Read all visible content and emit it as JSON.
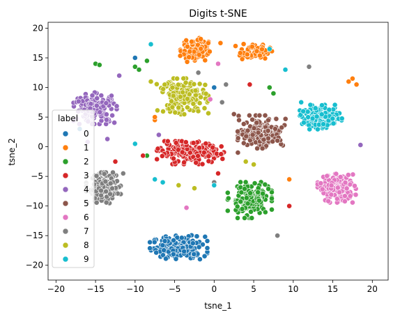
{
  "chart_data": {
    "type": "scatter",
    "title": "Digits t-SNE",
    "xlabel": "tsne_1",
    "ylabel": "tsne_2",
    "xlim": [
      -21,
      22
    ],
    "ylim": [
      -22.5,
      21
    ],
    "xticks": [
      -20,
      -15,
      -10,
      -5,
      0,
      5,
      10,
      15,
      20
    ],
    "yticks": [
      -20,
      -15,
      -10,
      -5,
      0,
      5,
      10,
      15,
      20
    ],
    "grid": false,
    "legend": {
      "title": "label",
      "placement": "lower-left",
      "entries": [
        "0",
        "1",
        "2",
        "3",
        "4",
        "5",
        "6",
        "7",
        "8",
        "9"
      ]
    },
    "colors": [
      "#1f77b4",
      "#ff7f0e",
      "#2ca02c",
      "#d62728",
      "#9467bd",
      "#8c564b",
      "#e377c2",
      "#7f7f7f",
      "#bcbd22",
      "#17becf"
    ],
    "clusters": [
      {
        "label": "0",
        "center": [
          -4.5,
          -17
        ],
        "spread": [
          3.0,
          1.7
        ],
        "count": 180
      },
      {
        "label": "1",
        "center": [
          -2.5,
          16.5
        ],
        "spread": [
          1.6,
          1.8
        ],
        "count": 95
      },
      {
        "label": "1",
        "center": [
          5,
          16
        ],
        "spread": [
          1.9,
          1.1
        ],
        "count": 60
      },
      {
        "label": "2",
        "center": [
          4.5,
          -9
        ],
        "spread": [
          2.3,
          2.5
        ],
        "count": 165
      },
      {
        "label": "3",
        "center": [
          -3,
          -1
        ],
        "spread": [
          3.5,
          1.6
        ],
        "count": 185
      },
      {
        "label": "4",
        "center": [
          -15,
          6.5
        ],
        "spread": [
          2.3,
          2.2
        ],
        "count": 170
      },
      {
        "label": "5",
        "center": [
          6,
          2.5
        ],
        "spread": [
          2.5,
          2.3
        ],
        "count": 170
      },
      {
        "label": "6",
        "center": [
          15.5,
          -7
        ],
        "spread": [
          2.0,
          2.0
        ],
        "count": 175
      },
      {
        "label": "7",
        "center": [
          -14,
          -7
        ],
        "spread": [
          1.8,
          2.2
        ],
        "count": 160
      },
      {
        "label": "8",
        "center": [
          -4,
          8.5
        ],
        "spread": [
          2.7,
          2.5
        ],
        "count": 170
      },
      {
        "label": "9",
        "center": [
          13.5,
          5
        ],
        "spread": [
          2.2,
          1.7
        ],
        "count": 175
      }
    ],
    "outliers": [
      {
        "label": "0",
        "points": [
          [
            -10,
            15
          ],
          [
            -17,
            3
          ],
          [
            -10,
            0.5
          ],
          [
            0,
            10
          ]
        ]
      },
      {
        "label": "1",
        "points": [
          [
            -7.5,
            4.5
          ],
          [
            -7.5,
            5
          ],
          [
            0.8,
            17.5
          ],
          [
            17.5,
            11.5
          ],
          [
            18,
            10.5
          ],
          [
            17,
            11
          ],
          [
            9.5,
            -5.5
          ]
        ]
      },
      {
        "label": "2",
        "points": [
          [
            -10,
            13.5
          ],
          [
            -8.5,
            14.5
          ],
          [
            -15,
            14
          ],
          [
            -14.5,
            13.8
          ],
          [
            -8.5,
            -1.5
          ],
          [
            -9.5,
            13
          ],
          [
            7,
            10
          ],
          [
            7.5,
            9
          ]
        ]
      },
      {
        "label": "3",
        "points": [
          [
            -12.5,
            -2.5
          ],
          [
            -9,
            -1.5
          ],
          [
            0.5,
            -4.5
          ],
          [
            4.5,
            10.5
          ],
          [
            9.5,
            -10
          ]
        ]
      },
      {
        "label": "4",
        "points": [
          [
            -16,
            0.8
          ],
          [
            -13.5,
            1.3
          ],
          [
            -7,
            2
          ],
          [
            18.5,
            0.3
          ],
          [
            -12,
            12
          ]
        ]
      },
      {
        "label": "5",
        "points": [
          [
            2.5,
            5.5
          ],
          [
            3,
            -1
          ]
        ]
      },
      {
        "label": "6",
        "points": [
          [
            -3.5,
            -10.3
          ],
          [
            0.5,
            14
          ],
          [
            -0.5,
            8
          ]
        ]
      },
      {
        "label": "7",
        "points": [
          [
            -11.5,
            -4.5
          ],
          [
            1.5,
            10.5
          ],
          [
            12,
            13.5
          ],
          [
            8,
            -15
          ],
          [
            -2,
            12.5
          ],
          [
            1,
            7.5
          ],
          [
            0,
            -6
          ]
        ]
      },
      {
        "label": "8",
        "points": [
          [
            -8,
            11
          ],
          [
            -4.5,
            -6.5
          ],
          [
            4,
            -2.5
          ],
          [
            5,
            -3
          ],
          [
            -2.5,
            -7
          ]
        ]
      },
      {
        "label": "9",
        "points": [
          [
            -8,
            17.3
          ],
          [
            -10,
            0.5
          ],
          [
            -7.5,
            -5.5
          ],
          [
            -6.5,
            -6
          ],
          [
            9,
            13
          ],
          [
            11,
            7.5
          ],
          [
            7,
            16.5
          ],
          [
            0,
            -6.5
          ]
        ]
      }
    ]
  }
}
